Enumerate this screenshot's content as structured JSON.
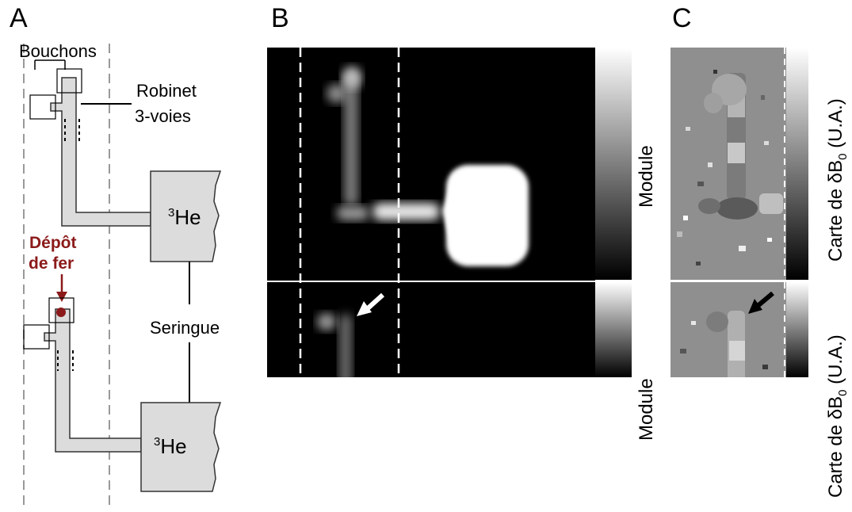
{
  "panels": {
    "a": "A",
    "b": "B",
    "c": "C"
  },
  "panel_a": {
    "caps_label": "Bouchons",
    "valve_line1": "Robinet",
    "valve_line2": "3-voies",
    "iron_line1": "Dépôt",
    "iron_line2": "de fer",
    "syringe_label": "Seringue",
    "he_sup": "3",
    "he_text": "He"
  },
  "panel_b": {
    "colorbar_label": "Module"
  },
  "panel_c": {
    "colorbar_label_pre": "Carte de δB",
    "colorbar_label_sub": "0",
    "colorbar_label_post": " (U.A.)"
  },
  "colors": {
    "iron_deposit": "#8b1a1a",
    "arrow_b": "#ffffff",
    "arrow_c": "#000000",
    "phase_background": "#8f8f8f"
  }
}
